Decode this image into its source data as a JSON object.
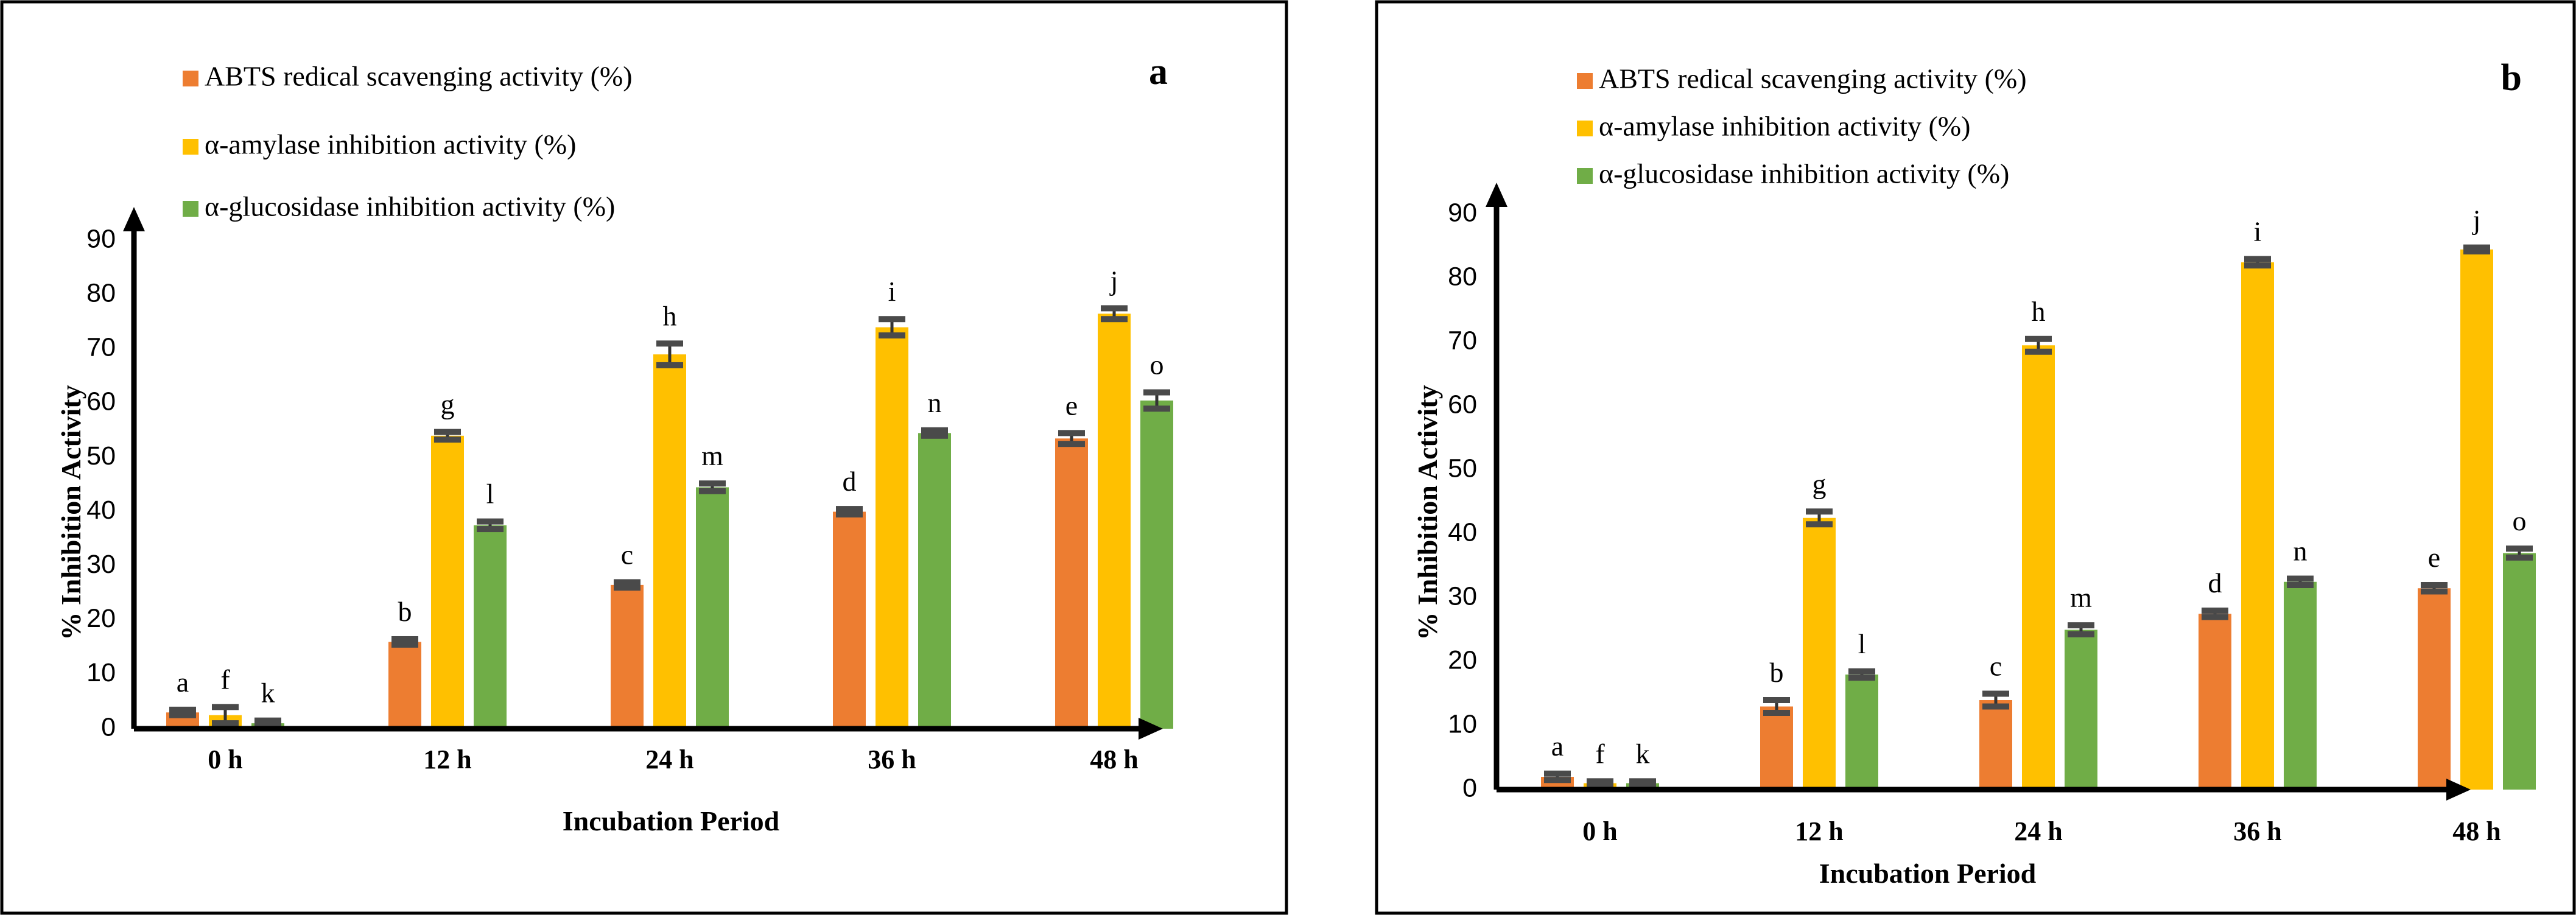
{
  "chart_data": [
    {
      "panel": "a",
      "type": "bar",
      "xlabel": "Incubation Period",
      "ylabel": "% Inhibition Activity",
      "ylim": [
        0,
        90
      ],
      "yticks": [
        0,
        10,
        20,
        30,
        40,
        50,
        60,
        70,
        80,
        90
      ],
      "categories": [
        "0 h",
        "12 h",
        "24 h",
        "36 h",
        "48 h"
      ],
      "legend_position": "top-left",
      "series": [
        {
          "name": "ABTS redical scavenging activity (%)",
          "color": "#ED7D31",
          "values": [
            3,
            16,
            26.5,
            40,
            53.5
          ],
          "errors": [
            0.5,
            0.5,
            0.5,
            0.5,
            1
          ],
          "letters": [
            "a",
            "b",
            "c",
            "d",
            "e"
          ]
        },
        {
          "name": "α-amylase inhibition  activity (%)",
          "color": "#FFC000",
          "values": [
            2.5,
            54,
            69,
            74,
            76.5
          ],
          "errors": [
            1.5,
            0.7,
            2,
            1.5,
            1
          ],
          "letters": [
            "f",
            "g",
            "h",
            "i",
            "j"
          ]
        },
        {
          "name": "α-glucosidase inhibition  activity (%)",
          "color": "#70AD47",
          "values": [
            1,
            37.5,
            44.5,
            54.5,
            60.5
          ],
          "errors": [
            0.5,
            0.7,
            0.7,
            0.5,
            1.5
          ],
          "letters": [
            "k",
            "l",
            "m",
            "n",
            "o"
          ]
        }
      ]
    },
    {
      "panel": "b",
      "type": "bar",
      "xlabel": "Incubation Period",
      "ylabel": "% Inhibition Activity",
      "ylim": [
        0,
        90
      ],
      "yticks": [
        0,
        10,
        20,
        30,
        40,
        50,
        60,
        70,
        80,
        90
      ],
      "categories": [
        "0 h",
        "12 h",
        "24 h",
        "36 h",
        "48 h"
      ],
      "legend_position": "top-left",
      "series": [
        {
          "name": "ABTS redical scavenging activity (%)",
          "color": "#ED7D31",
          "values": [
            2,
            13,
            14,
            27.5,
            31.5
          ],
          "errors": [
            0.5,
            1,
            1,
            0.5,
            0.5
          ],
          "letters": [
            "a",
            "b",
            "c",
            "d",
            "e"
          ]
        },
        {
          "name": "α-amylase inhibition  activity (%)",
          "color": "#FFC000",
          "values": [
            1,
            42.5,
            69.5,
            82.5,
            84.5
          ],
          "errors": [
            0.3,
            1,
            1,
            0.5,
            0.3
          ],
          "letters": [
            "f",
            "g",
            "h",
            "i",
            "j"
          ]
        },
        {
          "name": "α-glucosidase inhibition  activity (%)",
          "color": "#70AD47",
          "values": [
            1,
            18,
            25,
            32.5,
            37
          ],
          "errors": [
            0.3,
            0.5,
            0.7,
            0.5,
            0.7
          ],
          "letters": [
            "k",
            "l",
            "m",
            "n",
            "o"
          ]
        }
      ]
    }
  ]
}
